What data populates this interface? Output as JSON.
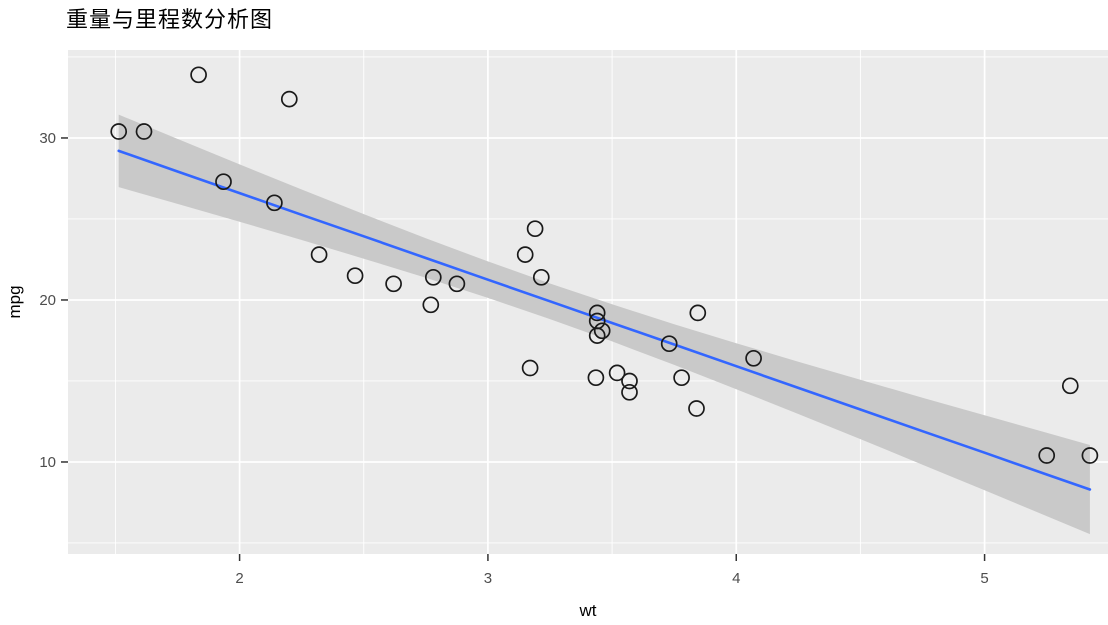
{
  "title": "重量与里程数分析图",
  "chart_data": {
    "type": "scatter",
    "title": "重量与里程数分析图",
    "xlabel": "wt",
    "ylabel": "mpg",
    "xlim": [
      1.309,
      5.497
    ],
    "ylim": [
      4.32,
      35.43
    ],
    "x_ticks": [
      2,
      3,
      4,
      5
    ],
    "y_ticks": [
      10,
      20,
      30
    ],
    "x_minor_ticks": [
      1.5,
      2.5,
      3.5,
      4.5,
      5.5
    ],
    "y_minor_ticks": [
      5,
      15,
      25,
      35
    ],
    "grid": "on",
    "legend": "none",
    "points": [
      [
        2.62,
        21.0
      ],
      [
        2.875,
        21.0
      ],
      [
        2.32,
        22.8
      ],
      [
        3.215,
        21.4
      ],
      [
        3.44,
        18.7
      ],
      [
        3.46,
        18.1
      ],
      [
        3.57,
        14.3
      ],
      [
        3.19,
        24.4
      ],
      [
        3.15,
        22.8
      ],
      [
        3.44,
        19.2
      ],
      [
        3.44,
        17.8
      ],
      [
        4.07,
        16.4
      ],
      [
        3.73,
        17.3
      ],
      [
        3.78,
        15.2
      ],
      [
        5.25,
        10.4
      ],
      [
        5.424,
        10.4
      ],
      [
        5.345,
        14.7
      ],
      [
        2.2,
        32.4
      ],
      [
        1.615,
        30.4
      ],
      [
        1.835,
        33.9
      ],
      [
        2.465,
        21.5
      ],
      [
        3.52,
        15.5
      ],
      [
        3.435,
        15.2
      ],
      [
        3.84,
        13.3
      ],
      [
        3.845,
        19.2
      ],
      [
        1.935,
        27.3
      ],
      [
        2.14,
        26.0
      ],
      [
        1.513,
        30.4
      ],
      [
        3.17,
        15.8
      ],
      [
        2.77,
        19.7
      ],
      [
        3.57,
        15.0
      ],
      [
        2.78,
        21.4
      ]
    ],
    "smooth": {
      "method": "lm",
      "x": [
        1.513,
        1.75,
        2.0,
        2.25,
        2.5,
        2.75,
        3.0,
        3.25,
        3.5,
        3.75,
        4.0,
        4.25,
        4.5,
        4.75,
        5.0,
        5.25,
        5.424
      ],
      "fit": [
        29.2,
        27.93,
        26.6,
        25.26,
        23.93,
        22.59,
        21.25,
        19.92,
        18.58,
        17.25,
        15.91,
        14.57,
        13.24,
        11.9,
        10.57,
        9.23,
        8.3
      ],
      "upper": [
        31.44,
        29.94,
        28.37,
        26.82,
        25.3,
        23.81,
        22.38,
        21.02,
        19.73,
        18.5,
        17.33,
        16.19,
        15.07,
        13.97,
        12.88,
        11.8,
        11.05
      ],
      "lower": [
        26.97,
        25.93,
        24.83,
        23.7,
        22.55,
        21.37,
        20.13,
        18.82,
        17.44,
        15.99,
        14.49,
        12.96,
        11.41,
        9.83,
        8.25,
        6.66,
        5.55
      ]
    },
    "colors": {
      "panel_bg": "#ebebeb",
      "grid": "#ffffff",
      "ribbon": "#c9c9c9",
      "line": "#3366ff",
      "point_stroke": "#1a1a1a",
      "tick_mark": "#333333",
      "tick_label": "#4d4d4d",
      "axis_title": "#000000",
      "title": "#000000"
    }
  }
}
